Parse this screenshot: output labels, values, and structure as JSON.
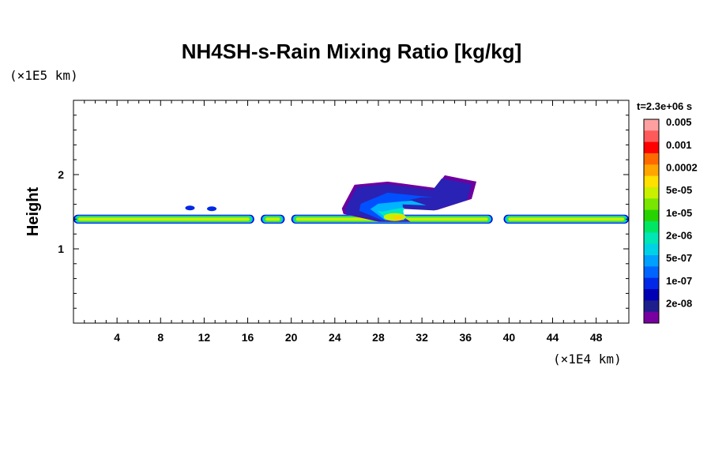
{
  "chart_data": {
    "type": "heatmap",
    "title": "NH4SH-s-Rain Mixing Ratio [kg/kg]",
    "ylabel": "Height",
    "y_unit": "(×1E5 km)",
    "x_unit": "(×1E4 km)",
    "time_label": "t=2.3e+06 s",
    "xlim": [
      0,
      51
    ],
    "ylim": [
      0,
      3
    ],
    "x_ticks": [
      4,
      8,
      12,
      16,
      20,
      24,
      28,
      32,
      36,
      40,
      44,
      48
    ],
    "y_ticks": [
      1,
      2
    ],
    "colorbar": {
      "labels": [
        "0.005",
        "0.001",
        "0.0002",
        "5e-05",
        "1e-05",
        "2e-06",
        "5e-07",
        "1e-07",
        "2e-08"
      ],
      "colors": [
        "#ffa0a0",
        "#ff5a5a",
        "#ff0000",
        "#ff6a00",
        "#ffa500",
        "#ffe000",
        "#c8f000",
        "#78e600",
        "#28d200",
        "#00e664",
        "#00e6b4",
        "#00d2e6",
        "#00a0ff",
        "#0064ff",
        "#0028e6",
        "#0000b4",
        "#1e1e8c",
        "#7800a0"
      ]
    },
    "layer": {
      "y_center": 1.4,
      "thickness": 0.12,
      "segments": [
        [
          0,
          16.6
        ],
        [
          17.2,
          19.4
        ],
        [
          20.0,
          38.5
        ],
        [
          39.5,
          51
        ]
      ],
      "isolated_cells": [
        [
          10.7,
          1.55
        ],
        [
          12.7,
          1.54
        ]
      ]
    },
    "plume": {
      "x_range": [
        24.5,
        37.0
      ],
      "y_top": 1.97,
      "base_y": 1.45
    }
  }
}
